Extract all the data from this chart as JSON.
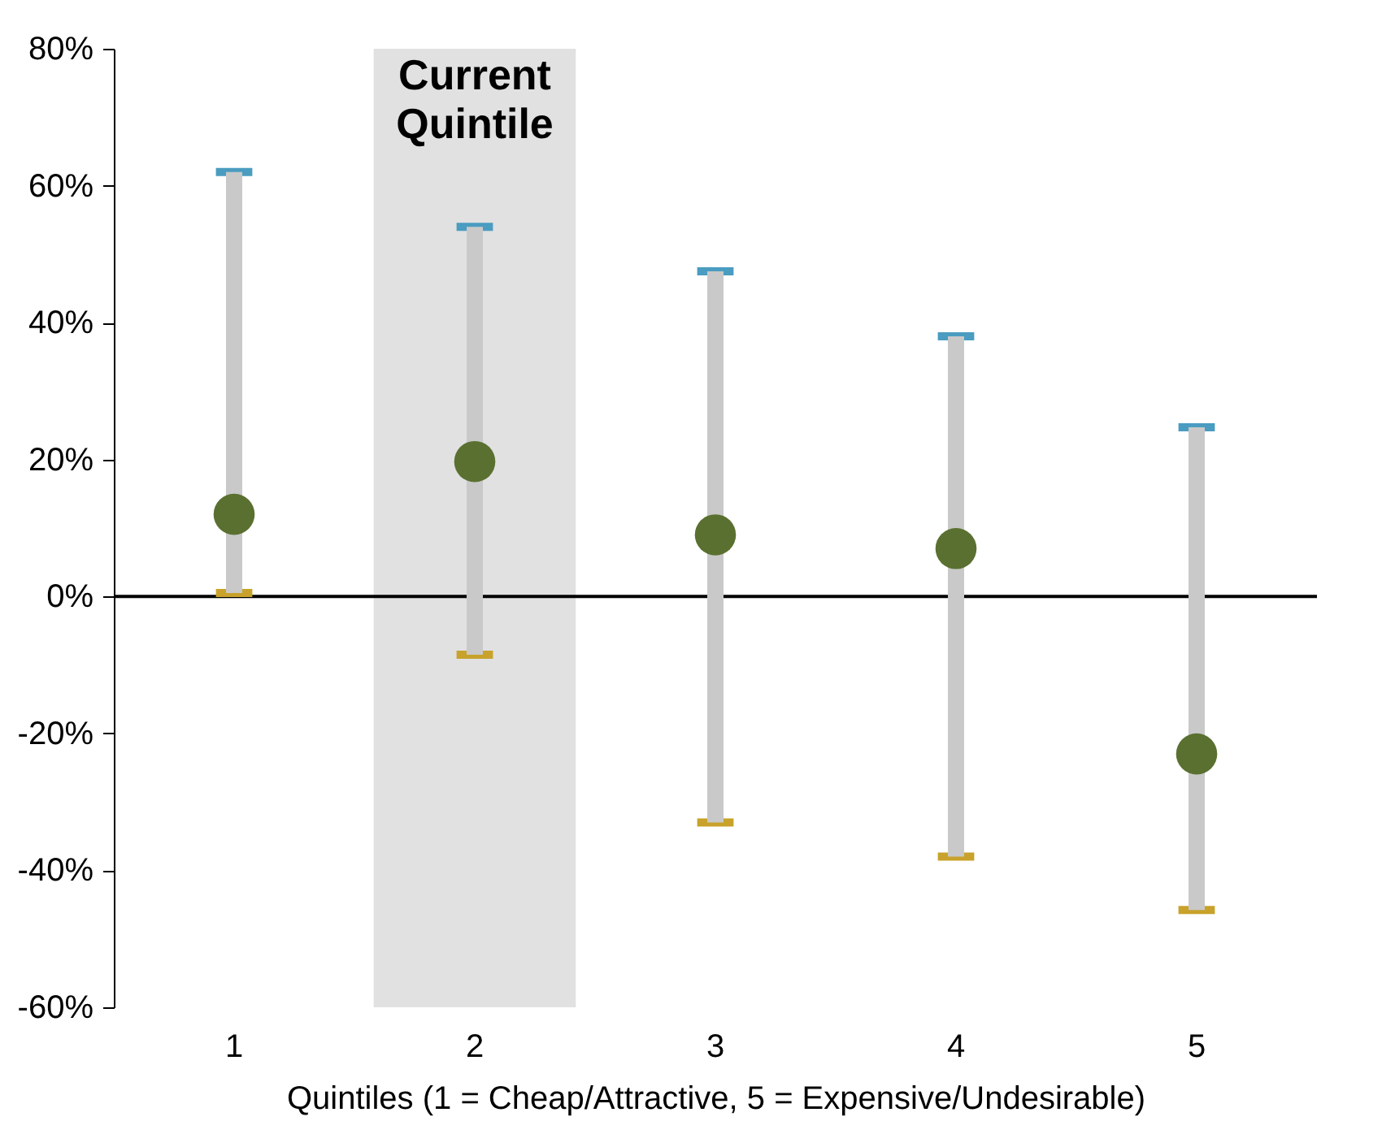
{
  "chart_data": {
    "type": "scatter",
    "xlabel": "Quintiles (1 = Cheap/Attractive, 5 = Expensive/Undesirable)",
    "categories": [
      "1",
      "2",
      "3",
      "4",
      "5"
    ],
    "series": [
      {
        "marker": "circle",
        "color": "#5a7030",
        "values": [
          12,
          19.7,
          9,
          7,
          -23
        ],
        "errors": [
          [
            0.5,
            62
          ],
          [
            -8.5,
            54
          ],
          [
            -33,
            47.5
          ],
          [
            -38,
            38
          ],
          [
            -45.8,
            24.7
          ]
        ]
      }
    ],
    "ylim": [
      -60,
      80
    ],
    "yticks": [
      {
        "value": -60,
        "label": "-60%"
      },
      {
        "value": -40,
        "label": "-40%"
      },
      {
        "value": -20,
        "label": "-20%"
      },
      {
        "value": 0,
        "label": "0%"
      },
      {
        "value": 20,
        "label": "20%"
      },
      {
        "value": 40,
        "label": "40%"
      },
      {
        "value": 60,
        "label": "60%"
      },
      {
        "value": 80,
        "label": "80%"
      }
    ],
    "bands": [
      {
        "axis": "x",
        "from": "2",
        "to": "2",
        "label": "Current Quintile",
        "color": "#e1e1e1"
      }
    ],
    "ref_lines": [
      {
        "axis": "y",
        "value": 0,
        "color": "#000000"
      }
    ],
    "grid": false,
    "legend": false
  }
}
